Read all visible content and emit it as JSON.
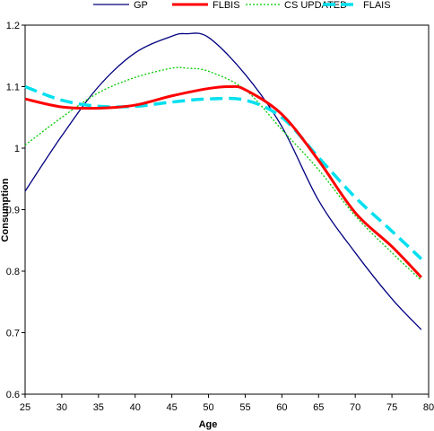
{
  "chart_data": {
    "type": "line",
    "title": "",
    "xlabel": "Age",
    "ylabel": "Consumption",
    "xlim": [
      25,
      80
    ],
    "ylim": [
      0.6,
      1.2
    ],
    "xticks": [
      "25",
      "30",
      "35",
      "40",
      "45",
      "50",
      "55",
      "60",
      "65",
      "70",
      "75",
      "80"
    ],
    "yticks": [
      "0.6",
      "0.7",
      "0.8",
      "0.9",
      "1",
      "1.1",
      "1.2"
    ],
    "grid": false,
    "legend_position": "top",
    "series": [
      {
        "name": "GP",
        "color": "#000080",
        "style": "solid",
        "x": [
          25,
          30,
          35,
          40,
          45,
          47,
          50,
          55,
          60,
          65,
          70,
          75,
          79
        ],
        "y": [
          0.93,
          1.02,
          1.1,
          1.155,
          1.182,
          1.186,
          1.18,
          1.12,
          1.035,
          0.915,
          0.83,
          0.755,
          0.705
        ]
      },
      {
        "name": "FLBIS",
        "color": "#ff0000",
        "style": "solid",
        "x": [
          25,
          30,
          35,
          40,
          45,
          50,
          53,
          55,
          60,
          65,
          70,
          75,
          79
        ],
        "y": [
          1.08,
          1.067,
          1.065,
          1.07,
          1.085,
          1.097,
          1.1,
          1.095,
          1.055,
          0.98,
          0.895,
          0.84,
          0.79
        ]
      },
      {
        "name": "CS UPDATED",
        "color": "#00cc00",
        "style": "dotted",
        "x": [
          25,
          30,
          35,
          40,
          45,
          47,
          50,
          55,
          60,
          65,
          70,
          75,
          79
        ],
        "y": [
          1.005,
          1.05,
          1.09,
          1.115,
          1.13,
          1.13,
          1.125,
          1.095,
          1.03,
          0.965,
          0.89,
          0.83,
          0.785
        ]
      },
      {
        "name": "FLAIS",
        "color": "#00e0ee",
        "style": "dashed",
        "x": [
          25,
          30,
          35,
          40,
          45,
          50,
          55,
          60,
          65,
          70,
          75,
          79
        ],
        "y": [
          1.1,
          1.078,
          1.068,
          1.068,
          1.075,
          1.08,
          1.078,
          1.05,
          0.985,
          0.92,
          0.865,
          0.82
        ]
      }
    ]
  }
}
